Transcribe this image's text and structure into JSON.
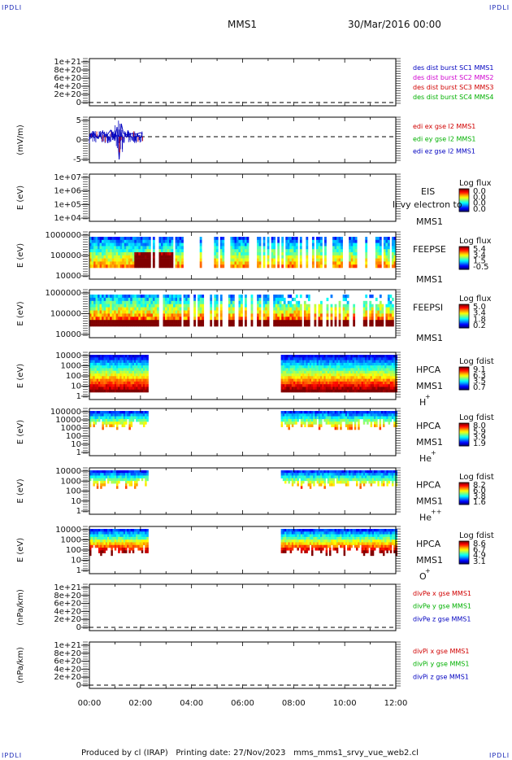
{
  "corner_label": "IPDLI",
  "header": {
    "spacecraft": "MMS1",
    "date": "30/Mar/2016 00:00"
  },
  "footer": {
    "produced_by": "Produced by cl (IRAP)",
    "printing_date": "Printing date: 27/Nov/2023",
    "script": "mms_mms1_srvy_vue_web2.cl"
  },
  "colors": {
    "red": "#d00000",
    "green": "#00b000",
    "blue": "#0000c0",
    "magenta": "#d000d0"
  },
  "chart_data": [
    {
      "panel": "des-dist",
      "type": "line",
      "xlabel": "",
      "ylabel": "",
      "ticks": [
        "1e+21",
        "8e+20",
        "6e+20",
        "4e+20",
        "2e+20",
        "0"
      ],
      "ylim": [
        0,
        1.1e+21
      ],
      "legend": [
        {
          "text": "des dist burst SC1 MMS1",
          "color": "#0000c0"
        },
        {
          "text": "des dist burst SC2 MMS2",
          "color": "#d000d0"
        },
        {
          "text": "des dist burst SC3 MMS3",
          "color": "#d00000"
        },
        {
          "text": "des dist burst SC4 MMS4",
          "color": "#00b000"
        }
      ],
      "series": []
    },
    {
      "panel": "edi-e",
      "type": "line",
      "ylabel": "(mV/m)",
      "ticks": [
        "5",
        "0",
        "-5"
      ],
      "ylim": [
        -8,
        6
      ],
      "legend": [
        {
          "text": "edi ex gse l2 MMS1",
          "color": "#d00000"
        },
        {
          "text": "edi ey gse l2 MMS1",
          "color": "#00b000"
        },
        {
          "text": "edi ez gse l2 MMS1",
          "color": "#0000c0"
        }
      ],
      "series": [
        {
          "x": [
            "00:00",
            "00:10",
            "00:20",
            "00:30",
            "00:40",
            "00:50",
            "01:00",
            "01:05",
            "01:10",
            "01:15",
            "01:20",
            "01:30",
            "01:40",
            "01:50",
            "02:00",
            "02:05"
          ],
          "values": [
            0.5,
            1,
            -0.5,
            1.5,
            0.2,
            2,
            -1,
            3,
            -7,
            4,
            1,
            0.5,
            1,
            0.8,
            1.2,
            1
          ]
        }
      ]
    },
    {
      "panel": "eis",
      "type": "heatmap",
      "ylabel": "E (eV)",
      "ticks": [
        "1e+07",
        "1e+06",
        "1e+05",
        "1e+04"
      ],
      "label1": "EIS",
      "label2": "MMS1",
      "overlay_text": "lı vy electron to",
      "colorbar": {
        "title": "Log flux",
        "ticks": [
          "0.0",
          "0.0",
          "0.0",
          "0.0"
        ]
      }
    },
    {
      "panel": "feeps-e",
      "type": "heatmap",
      "ylabel": "E (eV)",
      "ticks": [
        "1000000",
        "100000",
        "10000"
      ],
      "label1": "FEEPSE",
      "label2": "MMS1",
      "colorbar": {
        "title": "Log flux",
        "ticks": [
          "5.4",
          "3.4",
          "1.5",
          "-0.5"
        ]
      }
    },
    {
      "panel": "feeps-i",
      "type": "heatmap",
      "ylabel": "E (eV)",
      "ticks": [
        "1000000",
        "100000",
        "10000"
      ],
      "label1": "FEEPSI",
      "label2": "MMS1",
      "colorbar": {
        "title": "Log flux",
        "ticks": [
          "5.0",
          "3.4",
          "1.8",
          "0.2"
        ]
      }
    },
    {
      "panel": "hpca-h",
      "type": "heatmap",
      "ylabel": "E (eV)",
      "ticks": [
        "10000",
        "1000",
        "100",
        "10",
        "1"
      ],
      "label1": "HPCA",
      "label2": "MMS1",
      "species": "H",
      "charge": "+",
      "colorbar": {
        "title": "Log fdist",
        "ticks": [
          "9.1",
          "6.3",
          "3.5",
          "0.7"
        ]
      }
    },
    {
      "panel": "hpca-he",
      "type": "heatmap",
      "ylabel": "E (eV)",
      "ticks": [
        "100000",
        "10000",
        "1000",
        "100",
        "10",
        "1"
      ],
      "label1": "HPCA",
      "label2": "MMS1",
      "species": "He",
      "charge": "+",
      "colorbar": {
        "title": "Log fdist",
        "ticks": [
          "8.0",
          "5.9",
          "3.9",
          "1.9"
        ]
      }
    },
    {
      "panel": "hpca-hepp",
      "type": "heatmap",
      "ylabel": "E (eV)",
      "ticks": [
        "10000",
        "1000",
        "100",
        "10",
        "1"
      ],
      "label1": "HPCA",
      "label2": "MMS1",
      "species": "He",
      "charge": "++",
      "colorbar": {
        "title": "Log fdist",
        "ticks": [
          "8.2",
          "6.0",
          "3.8",
          "1.6"
        ]
      }
    },
    {
      "panel": "hpca-o",
      "type": "heatmap",
      "ylabel": "E (eV)",
      "ticks": [
        "10000",
        "1000",
        "100",
        "10",
        "1"
      ],
      "label1": "HPCA",
      "label2": "MMS1",
      "species": "O",
      "charge": "+",
      "colorbar": {
        "title": "Log fdist",
        "ticks": [
          "8.6",
          "6.7",
          "4.9",
          "3.1"
        ]
      }
    },
    {
      "panel": "divpe",
      "type": "line",
      "ylabel": "(nPa/km)",
      "ticks": [
        "1e+21",
        "8e+20",
        "6e+20",
        "4e+20",
        "2e+20",
        "0"
      ],
      "ylim": [
        0,
        1.1e+21
      ],
      "legend": [
        {
          "text": "divPe x gse MMS1",
          "color": "#d00000"
        },
        {
          "text": "divPe y gse MMS1",
          "color": "#00b000"
        },
        {
          "text": "divPe z gse MMS1",
          "color": "#0000c0"
        }
      ],
      "series": []
    },
    {
      "panel": "divpi",
      "type": "line",
      "ylabel": "(nPa/km)",
      "ticks": [
        "1e+21",
        "8e+20",
        "6e+20",
        "4e+20",
        "2e+20",
        "0"
      ],
      "ylim": [
        0,
        1.1e+21
      ],
      "legend": [
        {
          "text": "divPi x gse MMS1",
          "color": "#d00000"
        },
        {
          "text": "divPi y gse MMS1",
          "color": "#00b000"
        },
        {
          "text": "divPi z gse MMS1",
          "color": "#0000c0"
        }
      ],
      "series": []
    }
  ],
  "time_axis": {
    "ticks": [
      "00:00",
      "02:00",
      "04:00",
      "06:00",
      "08:00",
      "10:00",
      "12:00"
    ],
    "range_hours": [
      0,
      12
    ]
  },
  "hpca_coverage_hours": [
    [
      0.0,
      2.25
    ],
    [
      7.5,
      12.0
    ]
  ]
}
